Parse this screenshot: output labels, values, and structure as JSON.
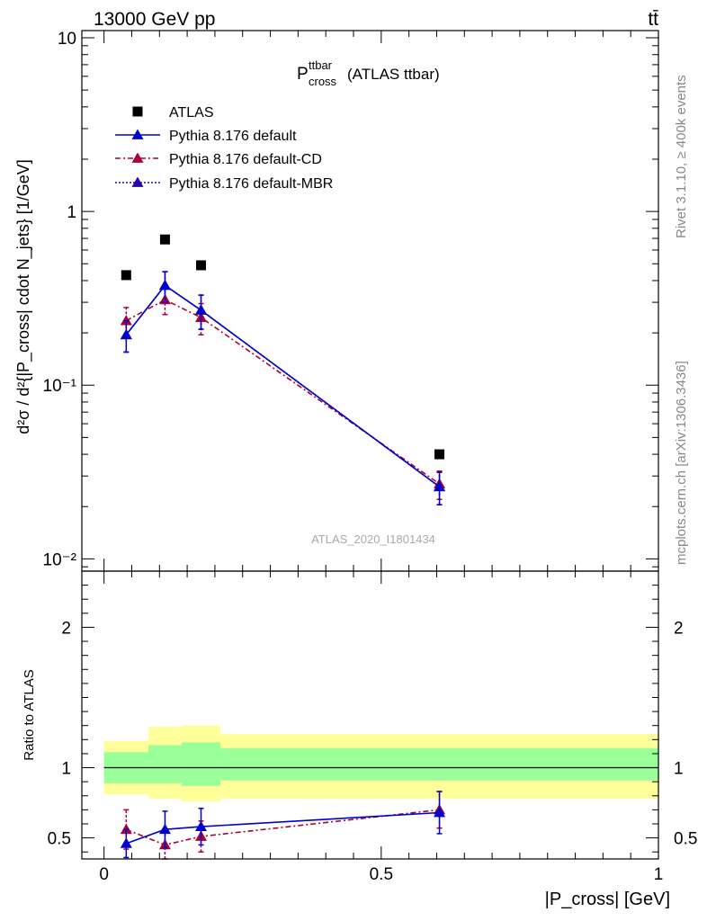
{
  "header": {
    "left_label": "13000 GeV pp",
    "right_label": "tt̄"
  },
  "side_labels": {
    "rivet": "Rivet 3.1.10, ≥ 400k events",
    "mcplots": "mcplots.cern.ch [arXiv:1306.3436]"
  },
  "plot_title": {
    "main": "P",
    "sup": "ttbar",
    "sub": "cross",
    "suffix": "(ATLAS ttbar)"
  },
  "watermark": "ATLAS_2020_I1801434",
  "ylabel_main": "d²σ / d²{|P_cross| cdot N_jets} [1/GeV]",
  "colors": {
    "data": "#000000",
    "default": "#0000cc",
    "cd": "#aa0033",
    "mbr": "#2a00aa",
    "band_inner": "#99ff99",
    "band_outer": "#ffff99"
  },
  "chart_data": [
    {
      "type": "scatter",
      "panel": "main",
      "x_scale": "linear",
      "y_scale": "log",
      "xlim": [
        -0.04,
        1.0
      ],
      "ylim": [
        0.0085,
        11
      ],
      "y_tick_labels": [
        "10",
        "1",
        "10⁻¹",
        "10⁻²"
      ],
      "legend_position": "top-left",
      "series": [
        {
          "name": "ATLAS",
          "style": "markers",
          "x": [
            0.04,
            0.11,
            0.175,
            0.605
          ],
          "y": [
            0.43,
            0.69,
            0.49,
            0.04
          ]
        },
        {
          "name": "Pythia 8.176 default",
          "style": "line",
          "x": [
            0.04,
            0.11,
            0.175,
            0.605
          ],
          "y": [
            0.195,
            0.375,
            0.27,
            0.026
          ],
          "err": [
            0.04,
            0.075,
            0.06,
            0.0055
          ]
        },
        {
          "name": "Pythia 8.176 default-CD",
          "style": "dashdot",
          "x": [
            0.04,
            0.11,
            0.175,
            0.605
          ],
          "y": [
            0.235,
            0.31,
            0.245,
            0.027
          ],
          "err": [
            0.045,
            0.055,
            0.05,
            0.005
          ]
        },
        {
          "name": "Pythia 8.176 default-MBR",
          "style": "dotted",
          "x": [
            0.04,
            0.11,
            0.175,
            0.605
          ],
          "y": [
            0.195,
            0.375,
            0.27,
            0.026
          ],
          "err": [
            0.04,
            0.075,
            0.06,
            0.0055
          ]
        }
      ]
    },
    {
      "type": "line",
      "panel": "ratio",
      "ylabel": "Ratio to ATLAS",
      "xlabel": "|P_cross| [GeV]",
      "xlim": [
        -0.04,
        1.0
      ],
      "ylim": [
        0.35,
        2.4
      ],
      "x_ticks": [
        0,
        0.5,
        1
      ],
      "x_tick_labels": [
        "0",
        "0.5",
        "1"
      ],
      "y_ticks": [
        0.5,
        1,
        2
      ],
      "y_tick_labels": [
        "0.5",
        "1",
        "2"
      ],
      "bands": [
        {
          "x0": 0.0,
          "x1": 0.08,
          "inner": [
            0.89,
            1.11
          ],
          "outer": [
            0.81,
            1.19
          ]
        },
        {
          "x0": 0.08,
          "x1": 0.14,
          "inner": [
            0.89,
            1.16
          ],
          "outer": [
            0.78,
            1.29
          ]
        },
        {
          "x0": 0.14,
          "x1": 0.21,
          "inner": [
            0.87,
            1.18
          ],
          "outer": [
            0.76,
            1.3
          ]
        },
        {
          "x0": 0.21,
          "x1": 1.0,
          "inner": [
            0.91,
            1.14
          ],
          "outer": [
            0.78,
            1.24
          ]
        }
      ],
      "series": [
        {
          "name": "Pythia 8.176 default",
          "style": "line",
          "x": [
            0.04,
            0.11,
            0.175,
            0.605
          ],
          "y": [
            0.46,
            0.56,
            0.58,
            0.68
          ],
          "err": [
            0.1,
            0.13,
            0.13,
            0.15
          ]
        },
        {
          "name": "Pythia 8.176 default-CD",
          "style": "dashdot",
          "x": [
            0.04,
            0.11,
            0.175,
            0.605
          ],
          "y": [
            0.56,
            0.45,
            0.51,
            0.7
          ],
          "err": [
            0.14,
            0.1,
            0.11,
            0.13
          ]
        }
      ]
    }
  ]
}
